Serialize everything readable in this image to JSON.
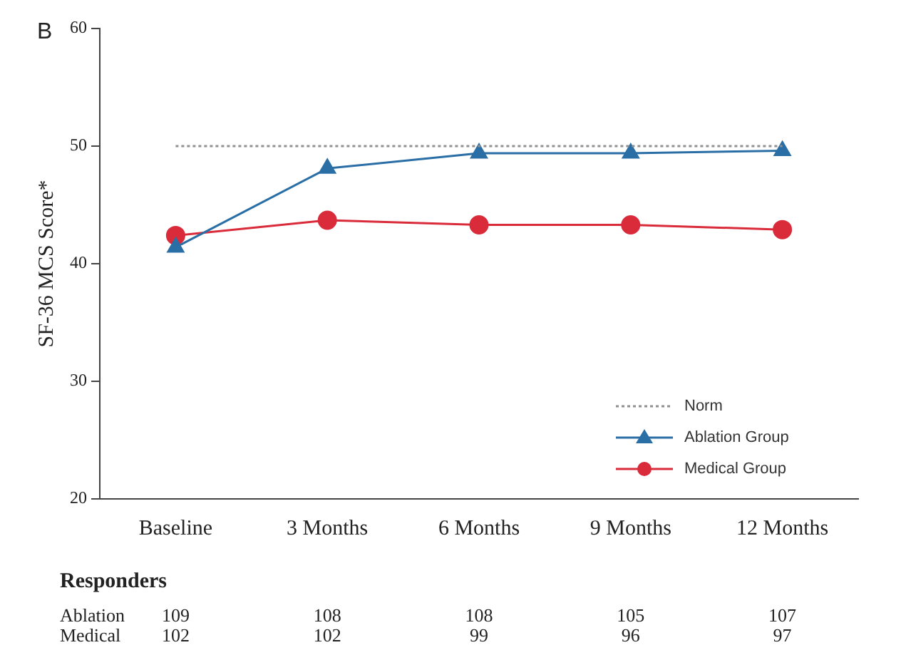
{
  "chart_data": {
    "type": "line",
    "ylabel": "SF-36 MCS Score*",
    "categories": [
      "Baseline",
      "3 Months",
      "6 Months",
      "9 Months",
      "12 Months"
    ],
    "series": [
      {
        "name": "Norm",
        "color": "#909090",
        "values": [
          50,
          50,
          50,
          50,
          50
        ],
        "line_style": "dotted",
        "marker": "none"
      },
      {
        "name": "Ablation Group",
        "color": "#2a6ea6",
        "values": [
          41.4,
          48.1,
          49.4,
          49.4,
          49.6
        ],
        "marker": "triangle"
      },
      {
        "name": "Medical Group",
        "color": "#d92b3a",
        "values": [
          42.4,
          43.7,
          43.3,
          43.3,
          42.9
        ],
        "marker": "circle"
      }
    ],
    "ylim": [
      20,
      60
    ],
    "yticks": [
      20,
      30,
      40,
      50,
      60
    ],
    "grid": false,
    "legend": "bottom right",
    "annotations": [
      "B",
      "Responders",
      "Ablation",
      "Medical",
      "109",
      "108",
      "108",
      "105",
      "107",
      "102",
      "102",
      "99",
      "96",
      "97"
    ]
  }
}
